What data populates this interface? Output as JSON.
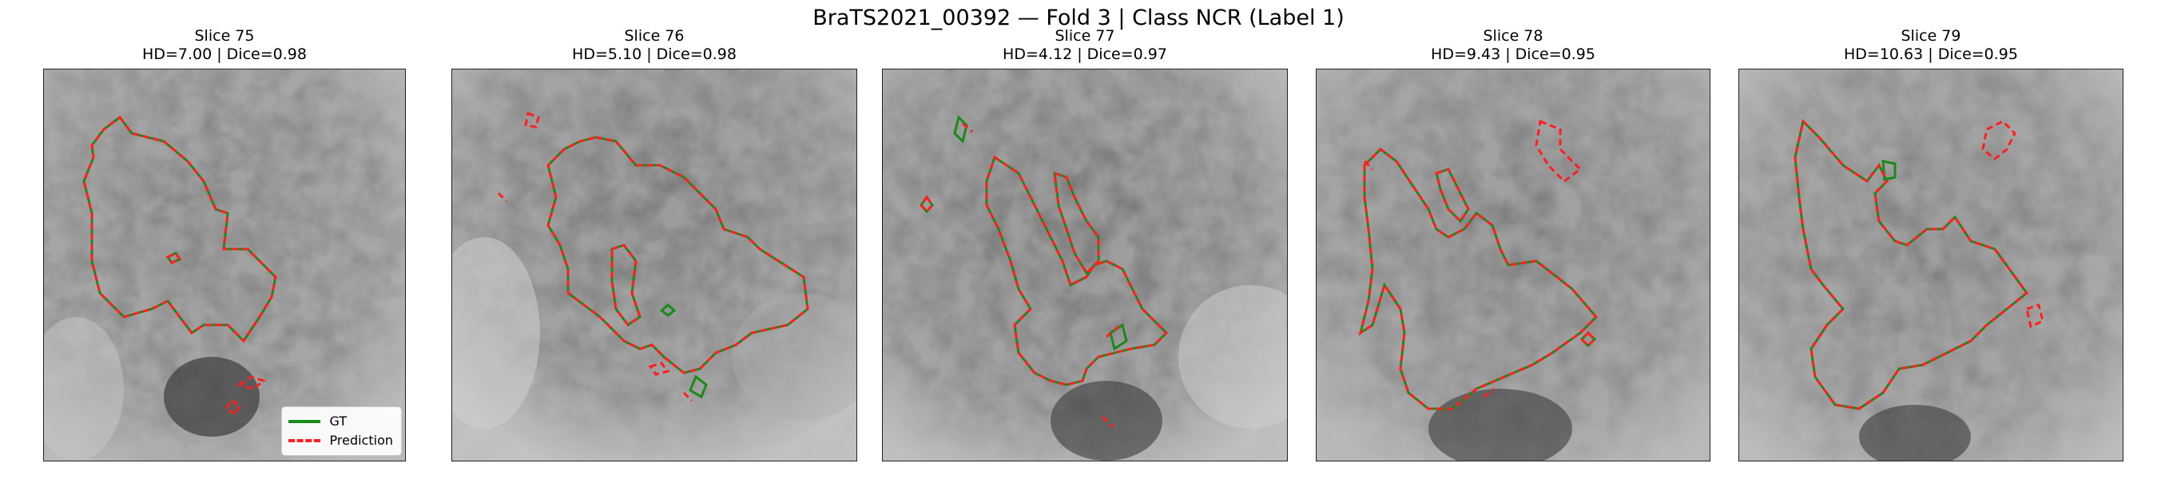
{
  "title": "BraTS2021_00392 — Fold 3 | Class NCR (Label 1)",
  "colors": {
    "gt": "#1a8a1a",
    "prediction": "#ff1f1f"
  },
  "legend": {
    "gt": "GT",
    "prediction": "Prediction",
    "position": "lower-right"
  },
  "slices": [
    {
      "label": "Slice 75",
      "metrics": "HD=7.00 | Dice=0.98"
    },
    {
      "label": "Slice 76",
      "metrics": "HD=5.10 | Dice=0.98"
    },
    {
      "label": "Slice 77",
      "metrics": "HD=4.12 | Dice=0.97"
    },
    {
      "label": "Slice 78",
      "metrics": "HD=9.43 | Dice=0.95"
    },
    {
      "label": "Slice 79",
      "metrics": "HD=10.63 | Dice=0.95"
    }
  ]
}
